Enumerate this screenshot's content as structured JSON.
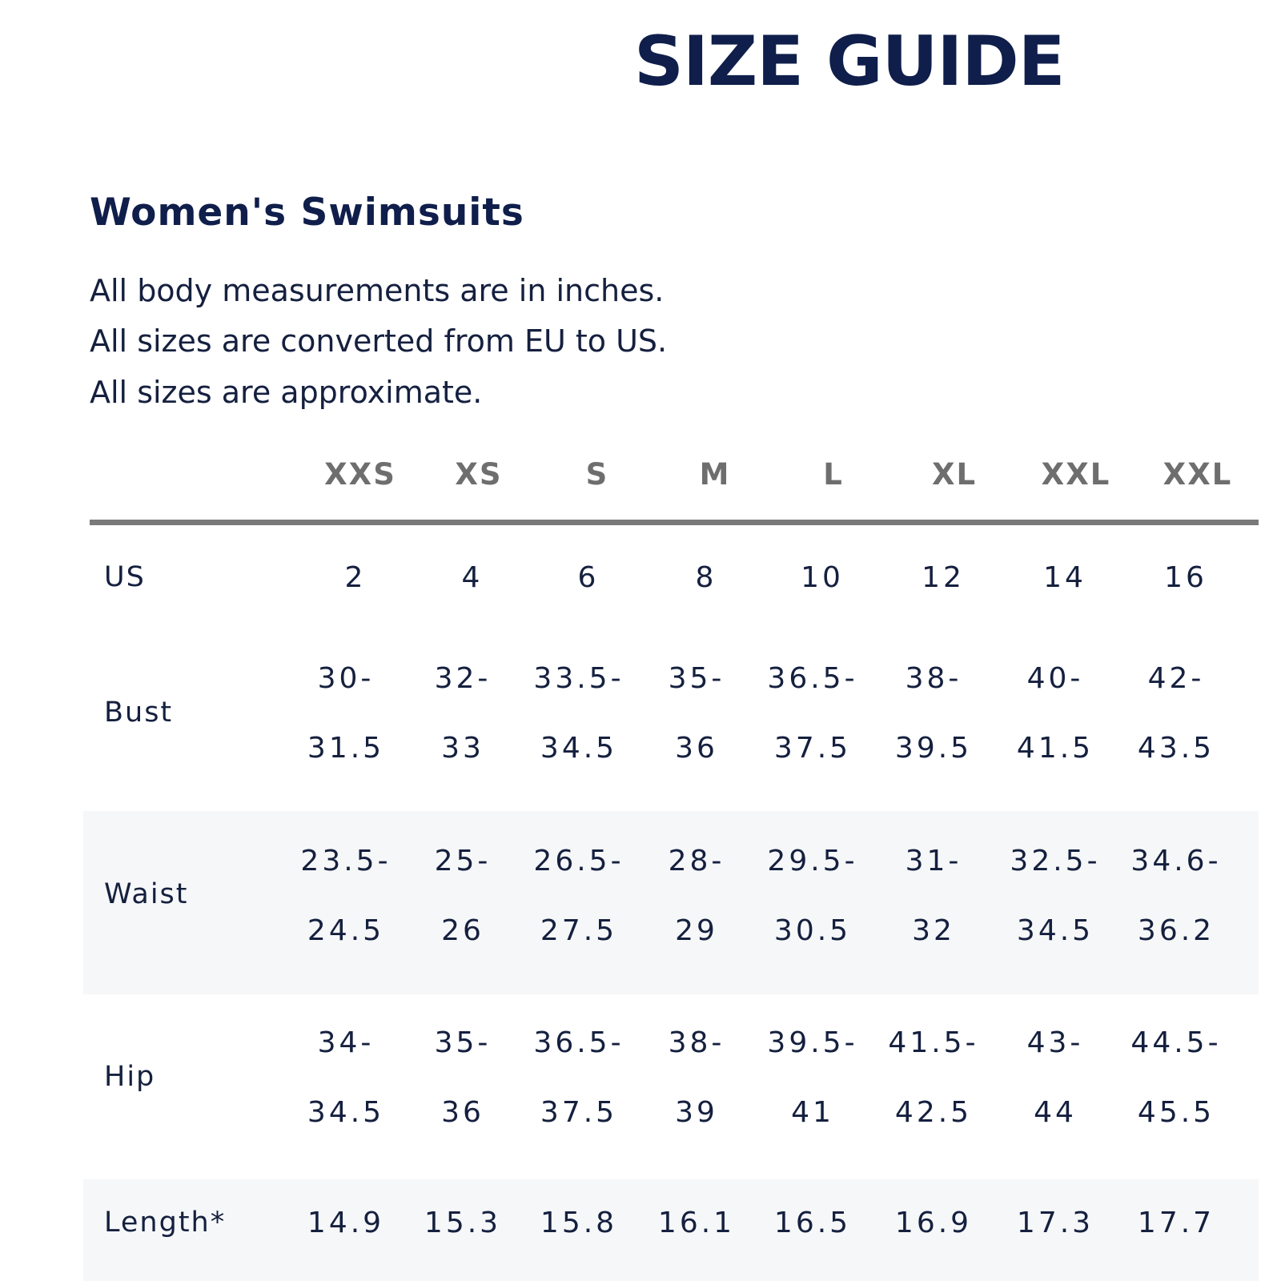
{
  "header": {
    "title": "SIZE GUIDE",
    "subtitle": "Women's Swimsuits",
    "notes": [
      "All body measurements are in inches.",
      "All sizes are converted from EU to US.",
      "All sizes are approximate."
    ]
  },
  "table": {
    "sizes": [
      "XXS",
      "XS",
      "S",
      "M",
      "L",
      "XL",
      "XXL",
      "XXL"
    ],
    "rows": {
      "us": {
        "label": "US",
        "values": [
          "2",
          "4",
          "6",
          "8",
          "10",
          "12",
          "14",
          "16"
        ]
      },
      "bust": {
        "label": "Bust",
        "top": [
          "30-",
          "32-",
          "33.5-",
          "35-",
          "36.5-",
          "38-",
          "40-",
          "42-"
        ],
        "bottom": [
          "31.5",
          "33",
          "34.5",
          "36",
          "37.5",
          "39.5",
          "41.5",
          "43.5"
        ]
      },
      "waist": {
        "label": "Waist",
        "top": [
          "23.5-",
          "25-",
          "26.5-",
          "28-",
          "29.5-",
          "31-",
          "32.5-",
          "34.6-"
        ],
        "bottom": [
          "24.5",
          "26",
          "27.5",
          "29",
          "30.5",
          "32",
          "34.5",
          "36.2"
        ]
      },
      "hip": {
        "label": "Hip",
        "top": [
          "34-",
          "35-",
          "36.5-",
          "38-",
          "39.5-",
          "41.5-",
          "43-",
          "44.5-"
        ],
        "bottom": [
          "34.5",
          "36",
          "37.5",
          "39",
          "41",
          "42.5",
          "44",
          "45.5"
        ]
      },
      "length": {
        "label": "Length*",
        "values": [
          "14.9",
          "15.3",
          "15.8",
          "16.1",
          "16.5",
          "16.9",
          "17.3",
          "17.7"
        ]
      }
    }
  },
  "colors": {
    "navy": "#0f1e4a",
    "text": "#15203f",
    "header_gray": "#6e6e6e",
    "rule_gray": "#7a7a7a",
    "band": "#f6f7f8"
  }
}
